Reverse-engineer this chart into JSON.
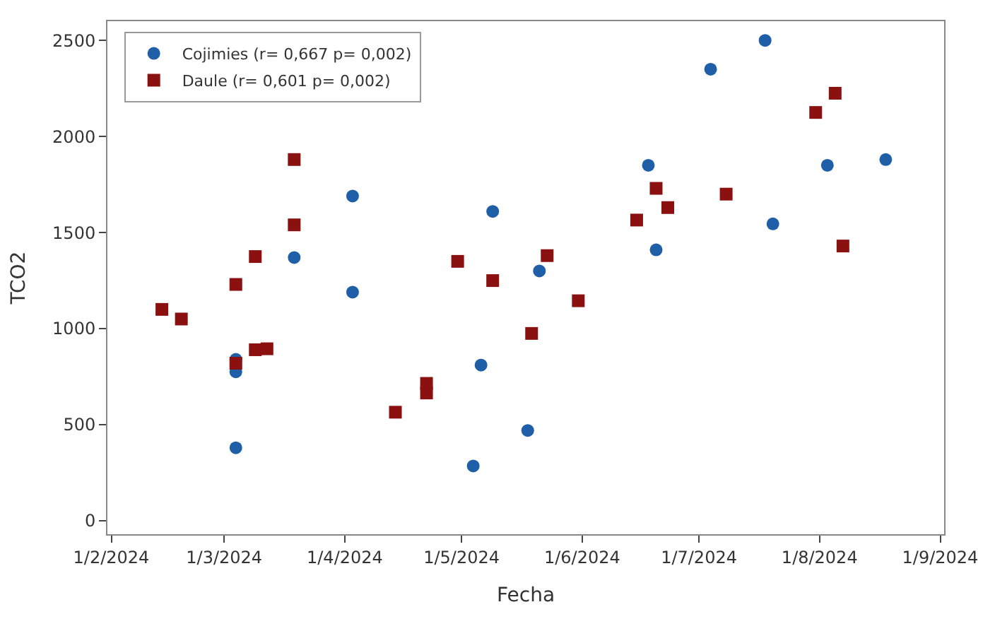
{
  "chart_data": {
    "type": "scatter",
    "xlabel": "Fecha",
    "ylabel": "TCO2",
    "legend": "top left",
    "xlim": [
      "2024-01-31",
      "2024-09-02"
    ],
    "xticks": [
      {
        "value": "2024-02-01",
        "label": "1/2/2024"
      },
      {
        "value": "2024-03-01",
        "label": "1/3/2024"
      },
      {
        "value": "2024-04-01",
        "label": "1/4/2024"
      },
      {
        "value": "2024-05-01",
        "label": "1/5/2024"
      },
      {
        "value": "2024-06-01",
        "label": "1/6/2024"
      },
      {
        "value": "2024-07-01",
        "label": "1/7/2024"
      },
      {
        "value": "2024-08-01",
        "label": "1/8/2024"
      },
      {
        "value": "2024-09-01",
        "label": "1/9/2024"
      }
    ],
    "ylim": [
      -70,
      2600
    ],
    "yticks": [
      0,
      500,
      1000,
      1500,
      2000,
      2500
    ],
    "series": [
      {
        "name": "Cojimies (r= 0,667 p= 0,002)",
        "color": "#1f5fa8",
        "marker": "circle",
        "x": [
          "2024-03-04",
          "2024-03-04",
          "2024-03-04",
          "2024-03-19",
          "2024-04-03",
          "2024-04-03",
          "2024-05-04",
          "2024-05-06",
          "2024-05-09",
          "2024-05-18",
          "2024-05-21",
          "2024-06-18",
          "2024-06-20",
          "2024-07-04",
          "2024-07-18",
          "2024-07-20",
          "2024-08-03",
          "2024-08-18"
        ],
        "values": [
          775,
          380,
          840,
          1370,
          1690,
          1190,
          285,
          810,
          1610,
          470,
          1300,
          1850,
          1410,
          2350,
          2500,
          1545,
          1850,
          1880
        ]
      },
      {
        "name": "Daule (r= 0,601 p= 0,002)",
        "color": "#8b1010",
        "marker": "square",
        "x": [
          "2024-02-14",
          "2024-02-19",
          "2024-03-04",
          "2024-03-04",
          "2024-03-09",
          "2024-03-09",
          "2024-03-12",
          "2024-03-19",
          "2024-03-19",
          "2024-04-14",
          "2024-04-22",
          "2024-04-22",
          "2024-04-30",
          "2024-05-09",
          "2024-05-19",
          "2024-05-23",
          "2024-05-31",
          "2024-06-15",
          "2024-06-20",
          "2024-06-23",
          "2024-07-08",
          "2024-07-31",
          "2024-08-05",
          "2024-08-07"
        ],
        "values": [
          1100,
          1050,
          1230,
          820,
          1375,
          890,
          895,
          1880,
          1540,
          565,
          715,
          665,
          1350,
          1250,
          975,
          1380,
          1145,
          1565,
          1730,
          1630,
          1700,
          2125,
          2225,
          1430
        ]
      }
    ]
  }
}
